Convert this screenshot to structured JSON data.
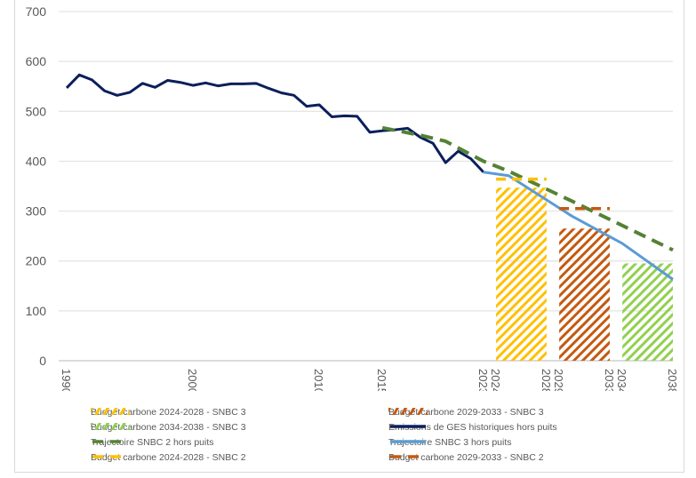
{
  "chart_data": {
    "type": "line",
    "title": "",
    "xlabel": "",
    "ylabel": "",
    "ylim": [
      0,
      700
    ],
    "xlim": [
      1990,
      2038
    ],
    "grid": true,
    "legend_position": "bottom",
    "y_ticks": [
      "0",
      "100",
      "200",
      "300",
      "400",
      "500",
      "600",
      "700"
    ],
    "x_ticks": [
      "1990",
      "2000",
      "2010",
      "2015",
      "2023",
      "2024",
      "2028",
      "2029",
      "2033",
      "2034",
      "2038"
    ],
    "series": [
      {
        "name": "Emissions de GES historiques hors puits",
        "kind": "line",
        "color": "#0b1f5c",
        "x": [
          1990,
          1991,
          1992,
          1993,
          1994,
          1995,
          1996,
          1997,
          1998,
          1999,
          2000,
          2001,
          2002,
          2003,
          2004,
          2005,
          2006,
          2007,
          2008,
          2009,
          2010,
          2011,
          2012,
          2013,
          2014,
          2015,
          2016,
          2017,
          2018,
          2019,
          2020,
          2021,
          2022,
          2023
        ],
        "y": [
          547,
          573,
          563,
          541,
          532,
          538,
          556,
          548,
          562,
          558,
          552,
          557,
          551,
          555,
          555,
          556,
          546,
          537,
          532,
          510,
          513,
          489,
          491,
          490,
          458,
          461,
          463,
          466,
          448,
          436,
          397,
          420,
          405,
          378
        ]
      },
      {
        "name": "Trajectoire SNBC 3 hors puits",
        "kind": "line",
        "color": "#5b9bd5",
        "x": [
          2023,
          2025,
          2030,
          2034,
          2038
        ],
        "y": [
          378,
          371,
          290,
          235,
          163
        ]
      },
      {
        "name": "Trajectoire SNBC 2 hors puits",
        "kind": "dashed",
        "color": "#548235",
        "x": [
          2015,
          2018,
          2020,
          2023,
          2025,
          2030,
          2038
        ],
        "y": [
          467,
          452,
          440,
          400,
          380,
          320,
          222
        ]
      },
      {
        "name": "Budget carbone 2024-2028 - SNBC 2",
        "kind": "dash-segment",
        "color": "#ffc000",
        "x": [
          2024,
          2028
        ],
        "y": [
          364,
          364
        ]
      },
      {
        "name": "Budget carbone 2029-2033 - SNBC 2",
        "kind": "dash-segment",
        "color": "#c55a11",
        "x": [
          2029,
          2033
        ],
        "y": [
          305,
          305
        ]
      }
    ],
    "bars": [
      {
        "name": "Budget carbone 2024-2028 - SNBC 3",
        "from": 2024,
        "to": 2028,
        "value": 347,
        "color": "#ffc000"
      },
      {
        "name": "Budget carbone 2029-2033 - SNBC 3",
        "from": 2029,
        "to": 2033,
        "value": 265,
        "color": "#c55a11"
      },
      {
        "name": "Budget carbone 2034-2038 - SNBC 3",
        "from": 2034,
        "to": 2038,
        "value": 195,
        "color": "#92d050"
      }
    ]
  },
  "legend": [
    {
      "label": "Budget carbone 2024-2028 - SNBC 3",
      "style": "hatch",
      "color": "#ffc000"
    },
    {
      "label": "Budget carbone 2029-2033 - SNBC 3",
      "style": "hatch",
      "color": "#c55a11"
    },
    {
      "label": "Budget carbone 2034-2038 - SNBC 3",
      "style": "hatch",
      "color": "#92d050"
    },
    {
      "label": "Emissions de GES historiques hors puits",
      "style": "solid",
      "color": "#0b1f5c"
    },
    {
      "label": "Trajectoire SNBC 2 hors puits",
      "style": "dashed",
      "color": "#548235"
    },
    {
      "label": "Trajectoire SNBC 3 hors puits",
      "style": "solid",
      "color": "#5b9bd5"
    },
    {
      "label": "Budget carbone 2024-2028 - SNBC 2",
      "style": "dashed",
      "color": "#ffc000"
    },
    {
      "label": "Budget carbone 2029-2033 - SNBC 2",
      "style": "dashed",
      "color": "#c55a11"
    }
  ]
}
